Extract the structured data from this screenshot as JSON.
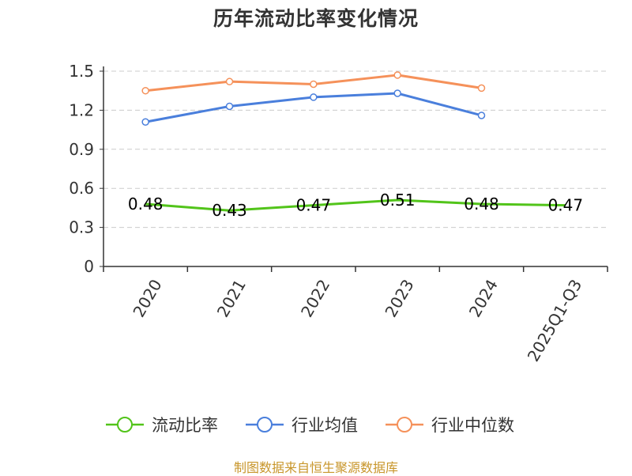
{
  "chart_data": {
    "type": "line",
    "title": "历年流动比率变化情况",
    "categories": [
      "2020",
      "2021",
      "2022",
      "2023",
      "2024",
      "2025Q1-Q3"
    ],
    "yticks": [
      "0",
      "0.3",
      "0.6",
      "0.9",
      "1.2",
      "1.5"
    ],
    "ylim": [
      0,
      1.5
    ],
    "grid": true,
    "legend_position": "bottom",
    "series": [
      {
        "name": "流动比率",
        "color": "#52c41a",
        "values": [
          0.48,
          0.43,
          0.47,
          0.51,
          0.48,
          0.47
        ],
        "labels": [
          "0.48",
          "0.43",
          "0.47",
          "0.51",
          "0.48",
          "0.47"
        ],
        "show_labels": true
      },
      {
        "name": "行业均值",
        "color": "#4a7fdc",
        "values": [
          1.11,
          1.23,
          1.3,
          1.33,
          1.16,
          null
        ],
        "show_labels": false
      },
      {
        "name": "行业中位数",
        "color": "#f5915a",
        "values": [
          1.35,
          1.42,
          1.4,
          1.47,
          1.37,
          null
        ],
        "show_labels": false
      }
    ]
  },
  "source": "制图数据来自恒生聚源数据库"
}
